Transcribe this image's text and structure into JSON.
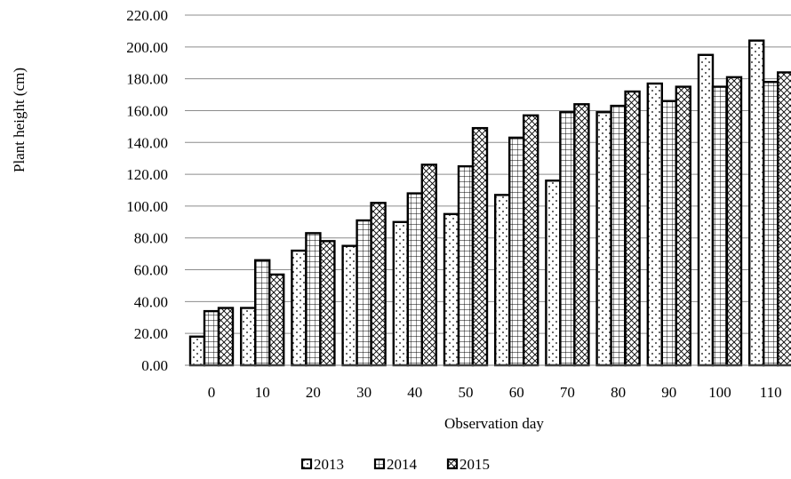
{
  "chart_data": {
    "type": "bar",
    "xlabel": "Observation day",
    "ylabel": "Plant height (cm)",
    "ylim": [
      0,
      220
    ],
    "yticks": [
      "0.00",
      "20.00",
      "40.00",
      "60.00",
      "80.00",
      "100.00",
      "120.00",
      "140.00",
      "160.00",
      "180.00",
      "200.00",
      "220.00"
    ],
    "categories": [
      "0",
      "10",
      "20",
      "30",
      "40",
      "50",
      "60",
      "70",
      "80",
      "90",
      "100",
      "110"
    ],
    "grid": true,
    "legend_position": "bottom",
    "series": [
      {
        "name": "2013",
        "pattern": "dots",
        "values": [
          18,
          36,
          72,
          75,
          90,
          95,
          107,
          116,
          159,
          177,
          195,
          204
        ]
      },
      {
        "name": "2014",
        "pattern": "grid",
        "values": [
          34,
          66,
          83,
          91,
          108,
          125,
          143,
          159,
          163,
          166,
          175,
          178
        ]
      },
      {
        "name": "2015",
        "pattern": "crosshatch",
        "values": [
          36,
          57,
          78,
          102,
          126,
          149,
          157,
          164,
          172,
          175,
          181,
          184
        ]
      }
    ]
  }
}
